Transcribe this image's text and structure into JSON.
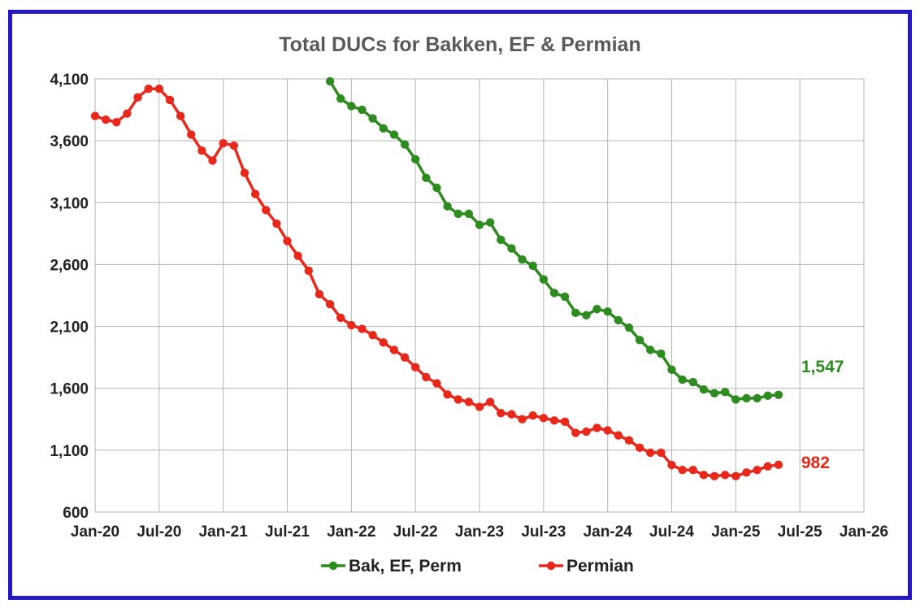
{
  "chart_data": {
    "type": "line",
    "title": "Total DUCs for Bakken, EF & Permian",
    "xlabel": "",
    "ylabel": "",
    "ylim": [
      600,
      4100
    ],
    "yticks": [
      "600",
      "1,100",
      "1,600",
      "2,100",
      "2,600",
      "3,100",
      "3,600",
      "4,100"
    ],
    "xlim": [
      "2020-01",
      "2026-01"
    ],
    "xticks": [
      "Jan-20",
      "Jul-20",
      "Jan-21",
      "Jul-21",
      "Jan-22",
      "Jul-22",
      "Jan-23",
      "Jul-23",
      "Jan-24",
      "Jul-24",
      "Jan-25",
      "Jul-25",
      "Jan-26"
    ],
    "grid": true,
    "legend_position": "bottom",
    "series": [
      {
        "name": "Bak, EF, Perm",
        "color": "#2e8b1f",
        "end_label": "1,547",
        "x": [
          "2021-11",
          "2021-12",
          "2022-01",
          "2022-02",
          "2022-03",
          "2022-04",
          "2022-05",
          "2022-06",
          "2022-07",
          "2022-08",
          "2022-09",
          "2022-10",
          "2022-11",
          "2022-12",
          "2023-01",
          "2023-02",
          "2023-03",
          "2023-04",
          "2023-05",
          "2023-06",
          "2023-07",
          "2023-08",
          "2023-09",
          "2023-10",
          "2023-11",
          "2023-12",
          "2024-01",
          "2024-02",
          "2024-03",
          "2024-04",
          "2024-05",
          "2024-06",
          "2024-07",
          "2024-08",
          "2024-09",
          "2024-10",
          "2024-11",
          "2024-12",
          "2025-01",
          "2025-02",
          "2025-03",
          "2025-04",
          "2025-05"
        ],
        "y": [
          4080,
          3940,
          3880,
          3850,
          3780,
          3700,
          3650,
          3570,
          3450,
          3300,
          3220,
          3070,
          3010,
          3010,
          2920,
          2940,
          2800,
          2730,
          2640,
          2590,
          2480,
          2370,
          2340,
          2210,
          2190,
          2240,
          2220,
          2150,
          2090,
          1990,
          1910,
          1880,
          1750,
          1670,
          1650,
          1590,
          1560,
          1570,
          1510,
          1520,
          1520,
          1540,
          1547
        ]
      },
      {
        "name": "Permian",
        "color": "#e8281b",
        "end_label": "982",
        "x": [
          "2020-01",
          "2020-02",
          "2020-03",
          "2020-04",
          "2020-05",
          "2020-06",
          "2020-07",
          "2020-08",
          "2020-09",
          "2020-10",
          "2020-11",
          "2020-12",
          "2021-01",
          "2021-02",
          "2021-03",
          "2021-04",
          "2021-05",
          "2021-06",
          "2021-07",
          "2021-08",
          "2021-09",
          "2021-10",
          "2021-11",
          "2021-12",
          "2022-01",
          "2022-02",
          "2022-03",
          "2022-04",
          "2022-05",
          "2022-06",
          "2022-07",
          "2022-08",
          "2022-09",
          "2022-10",
          "2022-11",
          "2022-12",
          "2023-01",
          "2023-02",
          "2023-03",
          "2023-04",
          "2023-05",
          "2023-06",
          "2023-07",
          "2023-08",
          "2023-09",
          "2023-10",
          "2023-11",
          "2023-12",
          "2024-01",
          "2024-02",
          "2024-03",
          "2024-04",
          "2024-05",
          "2024-06",
          "2024-07",
          "2024-08",
          "2024-09",
          "2024-10",
          "2024-11",
          "2024-12",
          "2025-01",
          "2025-02",
          "2025-03",
          "2025-04",
          "2025-05"
        ],
        "y": [
          3800,
          3770,
          3750,
          3820,
          3950,
          4020,
          4020,
          3930,
          3800,
          3650,
          3520,
          3440,
          3580,
          3560,
          3340,
          3170,
          3040,
          2930,
          2790,
          2670,
          2550,
          2360,
          2280,
          2170,
          2110,
          2080,
          2030,
          1970,
          1910,
          1850,
          1770,
          1690,
          1640,
          1550,
          1510,
          1490,
          1450,
          1490,
          1400,
          1390,
          1350,
          1380,
          1360,
          1340,
          1330,
          1240,
          1250,
          1280,
          1260,
          1220,
          1180,
          1120,
          1080,
          1080,
          980,
          940,
          940,
          900,
          890,
          900,
          890,
          920,
          940,
          970,
          982
        ]
      }
    ]
  }
}
